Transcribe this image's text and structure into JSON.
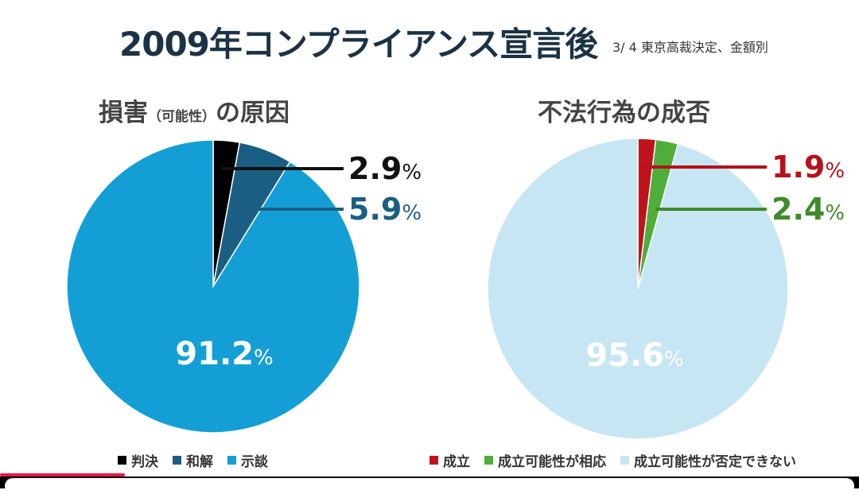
{
  "header": {
    "title": "2009年コンプライアンス宣言後",
    "subtitle": "3/ 4 東京高裁決定、金額別"
  },
  "chart_data": [
    {
      "type": "pie",
      "title_main": "損害",
      "title_small": "（可能性）",
      "title_tail": "の原因",
      "slices": [
        {
          "name": "判決",
          "value": 2.9,
          "label": "2.9",
          "color": "#000000"
        },
        {
          "name": "和解",
          "value": 5.9,
          "label": "5.9",
          "color": "#1b5e83"
        },
        {
          "name": "示談",
          "value": 91.2,
          "label": "91.2",
          "color": "#139fd6"
        }
      ],
      "percent_sign": "%",
      "label_colors": [
        "#111111",
        "#1b5e83",
        "#ffffff"
      ]
    },
    {
      "type": "pie",
      "title_main": "不法行為の成否",
      "slices": [
        {
          "name": "成立",
          "value": 1.9,
          "label": "1.9",
          "color": "#c0121a"
        },
        {
          "name": "成立可能性が相応",
          "value": 2.4,
          "label": "2.4",
          "color": "#4fad3a"
        },
        {
          "name": "成立可能性が否定できない",
          "value": 95.6,
          "label": "95.6",
          "color": "#c7e6f4"
        }
      ],
      "percent_sign": "%",
      "label_colors": [
        "#b5121b",
        "#3f8a2a",
        "#ffffff"
      ]
    }
  ],
  "progress": {
    "value": 0.145,
    "color": "#e8174a"
  }
}
